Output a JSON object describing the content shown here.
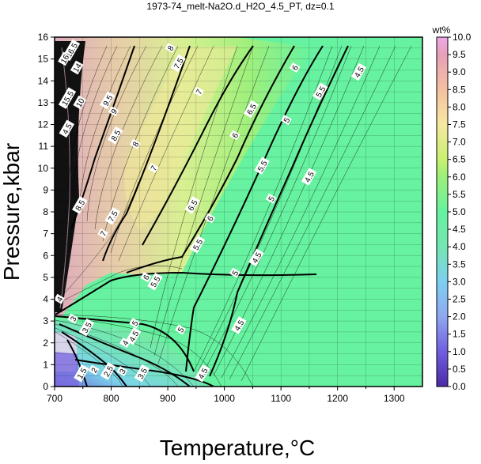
{
  "chart_data": {
    "type": "heatmap",
    "title": "1973-74_melt-Na2O.d_H2O_4.5_PT, dz=0.1",
    "xlabel": "Temperature,°C",
    "ylabel": "Pressure,kbar",
    "xlim": [
      700,
      1350
    ],
    "ylim": [
      0,
      16
    ],
    "xticks": [
      700,
      800,
      900,
      1000,
      1100,
      1200,
      1300
    ],
    "yticks": [
      0,
      1,
      2,
      3,
      4,
      5,
      6,
      7,
      8,
      9,
      10,
      11,
      12,
      13,
      14,
      15,
      16
    ],
    "grid": true,
    "colorbar": {
      "title": "wt%",
      "range": [
        0,
        10
      ],
      "ticks": [
        "0.0",
        "0.5",
        "1.0",
        "1.5",
        "2.0",
        "2.5",
        "3.0",
        "3.5",
        "4.0",
        "4.5",
        "5.0",
        "5.5",
        "6.0",
        "6.5",
        "7.0",
        "7.5",
        "8.0",
        "8.5",
        "9.0",
        "9.5",
        "10.0"
      ],
      "colors": [
        "#4b2aa5",
        "#6f5ee0",
        "#8fa8f0",
        "#7ecff2",
        "#74e6b2",
        "#7cf28f",
        "#c0f070",
        "#f6e8a0",
        "#f5c0a0",
        "#e8a0b0",
        "#f0a8e8"
      ]
    },
    "background_color": "#66f2a0",
    "contour_labels": [
      {
        "text": "4.5",
        "x": 1238,
        "y": 14.4
      },
      {
        "text": "5",
        "x": 1110,
        "y": 12.2
      },
      {
        "text": "5",
        "x": 1083,
        "y": 8.6
      },
      {
        "text": "5",
        "x": 1019,
        "y": 5.2
      },
      {
        "text": "5",
        "x": 923,
        "y": 2.6
      },
      {
        "text": "4.5",
        "x": 1150,
        "y": 9.6
      },
      {
        "text": "4.5",
        "x": 1057,
        "y": 5.9
      },
      {
        "text": "4.5",
        "x": 1026,
        "y": 2.8
      },
      {
        "text": "4.5",
        "x": 962,
        "y": 0.6
      },
      {
        "text": "4.5",
        "x": 840,
        "y": 2.3
      },
      {
        "text": "5.5",
        "x": 1170,
        "y": 13.5
      },
      {
        "text": "5.5",
        "x": 1067,
        "y": 10.1
      },
      {
        "text": "5.5",
        "x": 953,
        "y": 6.5
      },
      {
        "text": "6",
        "x": 1125,
        "y": 14.6
      },
      {
        "text": "6",
        "x": 1019,
        "y": 11.5
      },
      {
        "text": "6",
        "x": 975,
        "y": 7.7
      },
      {
        "text": "6.5",
        "x": 1048,
        "y": 12.7
      },
      {
        "text": "6.5",
        "x": 944,
        "y": 8.3
      },
      {
        "text": "7",
        "x": 955,
        "y": 13.5
      },
      {
        "text": "7",
        "x": 875,
        "y": 10.0
      },
      {
        "text": "7",
        "x": 786,
        "y": 7.0
      },
      {
        "text": "7.5",
        "x": 919,
        "y": 14.8
      },
      {
        "text": "7.5",
        "x": 803,
        "y": 7.8
      },
      {
        "text": "8",
        "x": 905,
        "y": 15.5
      },
      {
        "text": "8",
        "x": 843,
        "y": 11.1
      },
      {
        "text": "8.5",
        "x": 808,
        "y": 11.5
      },
      {
        "text": "9",
        "x": 805,
        "y": 12.6
      },
      {
        "text": "9.5",
        "x": 794,
        "y": 13.1
      },
      {
        "text": "6",
        "x": 862,
        "y": 5.0
      },
      {
        "text": "5.5",
        "x": 878,
        "y": 4.8
      },
      {
        "text": "5",
        "x": 842,
        "y": 2.9
      },
      {
        "text": "4",
        "x": 825,
        "y": 2.0
      },
      {
        "text": "4",
        "x": 709,
        "y": 4.0
      },
      {
        "text": "3",
        "x": 733,
        "y": 3.1
      },
      {
        "text": "3.5",
        "x": 757,
        "y": 2.7
      },
      {
        "text": "3.5",
        "x": 855,
        "y": 0.6
      },
      {
        "text": "3",
        "x": 820,
        "y": 0.7
      },
      {
        "text": "2.5",
        "x": 795,
        "y": 0.7
      },
      {
        "text": "2",
        "x": 770,
        "y": 0.75
      },
      {
        "text": "1.5",
        "x": 748,
        "y": 0.6
      },
      {
        "text": "16.5",
        "x": 730,
        "y": 15.4
      },
      {
        "text": "16",
        "x": 718,
        "y": 15.0
      },
      {
        "text": "15.5",
        "x": 723,
        "y": 13.2
      },
      {
        "text": "14",
        "x": 740,
        "y": 14.6
      },
      {
        "text": "10",
        "x": 745,
        "y": 13.0
      },
      {
        "text": "4.5",
        "x": 722,
        "y": 11.8
      },
      {
        "text": "8.5",
        "x": 745,
        "y": 8.3
      }
    ]
  }
}
